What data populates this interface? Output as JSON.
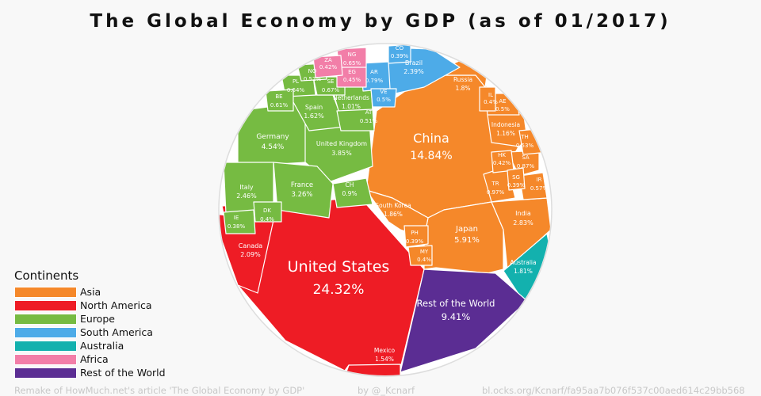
{
  "title": "The Global Economy by GDP (as of 01/2017)",
  "legend_title": "Continents",
  "continents": [
    {
      "name": "Asia",
      "color": "#f5882a"
    },
    {
      "name": "North America",
      "color": "#ee1c25"
    },
    {
      "name": "Europe",
      "color": "#76bb42"
    },
    {
      "name": "South America",
      "color": "#4dabe8"
    },
    {
      "name": "Australia",
      "color": "#13b1ae"
    },
    {
      "name": "Africa",
      "color": "#f27ea8"
    },
    {
      "name": "Rest of the World",
      "color": "#5b2d93"
    }
  ],
  "footer": {
    "credit": "Remake of HowMuch.net's article 'The Global Economy by GDP'",
    "author": "by @_Kcnarf",
    "link": "bl.ocks.org/Kcnarf/fa95aa7b076f537c00aed614c29bb568"
  },
  "chart_data": {
    "type": "voronoi-treemap",
    "unit": "% of world GDP",
    "cells": [
      {
        "name": "United States",
        "value": "24.32%",
        "continent": "North America"
      },
      {
        "name": "Canada",
        "value": "2.09%",
        "continent": "North America"
      },
      {
        "name": "Mexico",
        "value": "1.54%",
        "continent": "North America"
      },
      {
        "name": "China",
        "value": "14.84%",
        "continent": "Asia"
      },
      {
        "name": "Japan",
        "value": "5.91%",
        "continent": "Asia"
      },
      {
        "name": "India",
        "value": "2.83%",
        "continent": "Asia"
      },
      {
        "name": "South Korea",
        "value": "1.86%",
        "continent": "Asia"
      },
      {
        "name": "Russia",
        "value": "1.8%",
        "continent": "Asia"
      },
      {
        "name": "Indonesia",
        "value": "1.16%",
        "continent": "Asia"
      },
      {
        "name": "TR",
        "value": "0.97%",
        "continent": "Asia"
      },
      {
        "name": "SA",
        "value": "0.87%",
        "continent": "Asia"
      },
      {
        "name": "IR",
        "value": "0.57%",
        "continent": "Asia"
      },
      {
        "name": "TH",
        "value": "0.53%",
        "continent": "Asia"
      },
      {
        "name": "AE",
        "value": "0.5%",
        "continent": "Asia"
      },
      {
        "name": "IL",
        "value": "0.4%",
        "continent": "Asia"
      },
      {
        "name": "HK",
        "value": "0.42%",
        "continent": "Asia"
      },
      {
        "name": "SG",
        "value": "0.39%",
        "continent": "Asia"
      },
      {
        "name": "PH",
        "value": "0.39%",
        "continent": "Asia"
      },
      {
        "name": "MY",
        "value": "0.4%",
        "continent": "Asia"
      },
      {
        "name": "Germany",
        "value": "4.54%",
        "continent": "Europe"
      },
      {
        "name": "United Kingdom",
        "value": "3.85%",
        "continent": "Europe"
      },
      {
        "name": "France",
        "value": "3.26%",
        "continent": "Europe"
      },
      {
        "name": "Italy",
        "value": "2.46%",
        "continent": "Europe"
      },
      {
        "name": "Spain",
        "value": "1.62%",
        "continent": "Europe"
      },
      {
        "name": "Netherlands",
        "value": "1.01%",
        "continent": "Europe"
      },
      {
        "name": "CH",
        "value": "0.9%",
        "continent": "Europe"
      },
      {
        "name": "SE",
        "value": "0.67%",
        "continent": "Europe"
      },
      {
        "name": "PL",
        "value": "0.64%",
        "continent": "Europe"
      },
      {
        "name": "BE",
        "value": "0.61%",
        "continent": "Europe"
      },
      {
        "name": "NO",
        "value": "0.52%",
        "continent": "Europe"
      },
      {
        "name": "AT",
        "value": "0.51%",
        "continent": "Europe"
      },
      {
        "name": "DK",
        "value": "0.4%",
        "continent": "Europe"
      },
      {
        "name": "IE",
        "value": "0.38%",
        "continent": "Europe"
      },
      {
        "name": "Brazil",
        "value": "2.39%",
        "continent": "South America"
      },
      {
        "name": "AR",
        "value": "0.79%",
        "continent": "South America"
      },
      {
        "name": "VE",
        "value": "0.5%",
        "continent": "South America"
      },
      {
        "name": "CO",
        "value": "0.39%",
        "continent": "South America"
      },
      {
        "name": "NG",
        "value": "0.65%",
        "continent": "Africa"
      },
      {
        "name": "EG",
        "value": "0.45%",
        "continent": "Africa"
      },
      {
        "name": "ZA",
        "value": "0.42%",
        "continent": "Africa"
      },
      {
        "name": "Australia",
        "value": "1.81%",
        "continent": "Australia"
      },
      {
        "name": "Rest of the World",
        "value": "9.41%",
        "continent": "Rest of the World"
      }
    ]
  }
}
